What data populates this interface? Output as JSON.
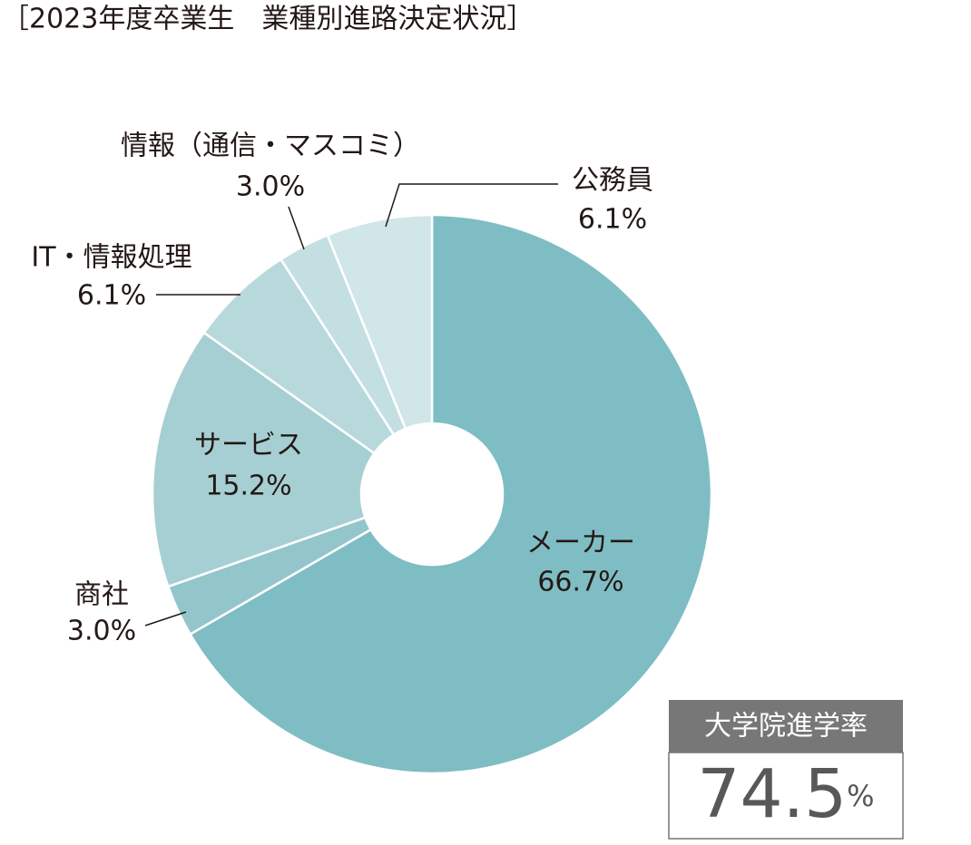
{
  "chart_data": {
    "type": "donut",
    "title": "［2023年度卒業生　業種別進路決定状況］",
    "categories": [
      "メーカー",
      "商社",
      "サービス",
      "IT・情報処理",
      "情報（通信・マスコミ）",
      "公務員"
    ],
    "values": [
      66.7,
      3.0,
      15.2,
      6.1,
      3.0,
      6.1
    ],
    "value_labels": [
      "66.7%",
      "3.0%",
      "15.2%",
      "6.1%",
      "3.0%",
      "6.1%"
    ],
    "colors": [
      "#7fbdc4",
      "#93c6cb",
      "#a6cfd3",
      "#b8d9dc",
      "#c3dfe2",
      "#d0e6e9"
    ]
  },
  "graduate_school_rate": {
    "label": "大学院進学率",
    "value": 74.5,
    "unit": "%"
  }
}
